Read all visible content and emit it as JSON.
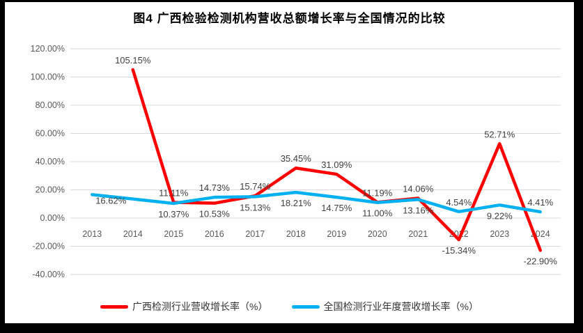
{
  "title": "图4 广西检验检测机构营收总额增长率与全国情况的比较",
  "chart_data": {
    "type": "line",
    "categories": [
      "2013",
      "2014",
      "2015",
      "2016",
      "2017",
      "2018",
      "2019",
      "2020",
      "2021",
      "2022",
      "2023",
      "2024"
    ],
    "series": [
      {
        "name": "广西检测行业营收增长率（%）",
        "color": "#FF0000",
        "values": [
          null,
          105.15,
          11.11,
          10.53,
          15.74,
          35.45,
          31.09,
          11.19,
          14.06,
          -15.34,
          52.71,
          -22.9
        ],
        "labels": [
          "",
          "105.15%",
          "11.11%",
          "10.53%",
          "15.74%",
          "35.45%",
          "31.09%",
          "11.19%",
          "14.06%",
          "-15.34%",
          "52.71%",
          "-22.90%"
        ],
        "label_placement": [
          "",
          "above",
          "above",
          "below",
          "above",
          "above",
          "above",
          "above",
          "above",
          "below",
          "above",
          "below"
        ]
      },
      {
        "name": "全国检测行业年度营收增长率（%）",
        "color": "#00B0F0",
        "values": [
          16.62,
          13.5,
          10.37,
          14.73,
          15.13,
          18.21,
          14.75,
          11.0,
          13.16,
          4.54,
          9.22,
          4.41
        ],
        "labels": [
          "16.62%",
          "",
          "10.37%",
          "14.73%",
          "15.13%",
          "18.21%",
          "14.75%",
          "11.00%",
          "13.16%",
          "4.54%",
          "9.22%",
          "4.41%"
        ],
        "label_placement": [
          "below-right",
          "",
          "below",
          "above",
          "below",
          "below",
          "below",
          "below",
          "below",
          "above",
          "below",
          "above"
        ]
      }
    ],
    "ylim": [
      -40,
      120
    ],
    "ytick_step": 20,
    "ytick_labels": [
      "120.00%",
      "100.00%",
      "80.00%",
      "60.00%",
      "40.00%",
      "20.00%",
      "0.00%",
      "-20.00%",
      "-40.00%"
    ],
    "grid": true,
    "legend_position": "bottom"
  },
  "legend": {
    "items": [
      {
        "label": "广西检测行业营收增长率（%）",
        "color": "#FF0000"
      },
      {
        "label": "全国检测行业年度营收增长率（%）",
        "color": "#00B0F0"
      }
    ]
  },
  "colors": {
    "gridline": "#D9D9D9",
    "axis_text": "#595959",
    "data_label_text": "#404040",
    "series_red": "#FF0000",
    "series_blue": "#00B0F0",
    "frame_border": "#000000",
    "background": "#FFFFFF"
  }
}
